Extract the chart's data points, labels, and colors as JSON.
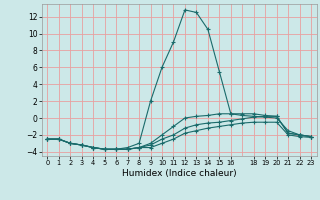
{
  "title": "",
  "xlabel": "Humidex (Indice chaleur)",
  "bg_color": "#cce8e8",
  "grid_color_v": "#e8a0a0",
  "grid_color_h": "#e8a0a0",
  "line_color": "#1a6b6b",
  "xlim": [
    -0.5,
    23.5
  ],
  "ylim": [
    -4.5,
    13.5
  ],
  "yticks": [
    -4,
    -2,
    0,
    2,
    4,
    6,
    8,
    10,
    12
  ],
  "xticks": [
    0,
    1,
    2,
    3,
    4,
    5,
    6,
    7,
    8,
    9,
    10,
    11,
    12,
    13,
    14,
    15,
    16,
    18,
    19,
    20,
    21,
    22,
    23
  ],
  "curves": [
    {
      "x": [
        0,
        1,
        2,
        3,
        4,
        5,
        6,
        7,
        8,
        9,
        10,
        11,
        12,
        13,
        14,
        15,
        16,
        17,
        18,
        19,
        20,
        21,
        22,
        23
      ],
      "y": [
        -2.5,
        -2.5,
        -3.0,
        -3.2,
        -3.5,
        -3.7,
        -3.7,
        -3.7,
        -3.5,
        -3.5,
        -3.0,
        -2.5,
        -1.8,
        -1.5,
        -1.2,
        -1.0,
        -0.8,
        -0.6,
        -0.5,
        -0.5,
        -0.5,
        -2.0,
        -2.2,
        -2.3
      ]
    },
    {
      "x": [
        0,
        1,
        2,
        3,
        4,
        5,
        6,
        7,
        8,
        9,
        10,
        11,
        12,
        13,
        14,
        15,
        16,
        17,
        18,
        19,
        20,
        21,
        22,
        23
      ],
      "y": [
        -2.5,
        -2.5,
        -3.0,
        -3.2,
        -3.5,
        -3.7,
        -3.7,
        -3.7,
        -3.5,
        -3.2,
        -2.5,
        -2.0,
        -1.2,
        -0.8,
        -0.6,
        -0.5,
        -0.3,
        -0.1,
        0.1,
        0.2,
        0.2,
        -1.8,
        -2.0,
        -2.2
      ]
    },
    {
      "x": [
        0,
        1,
        2,
        3,
        4,
        5,
        6,
        7,
        8,
        9,
        10,
        11,
        12,
        13,
        14,
        15,
        16,
        17,
        18,
        19,
        20,
        21,
        22,
        23
      ],
      "y": [
        -2.5,
        -2.5,
        -3.0,
        -3.2,
        -3.5,
        -3.7,
        -3.7,
        -3.5,
        -3.0,
        2.0,
        6.0,
        9.0,
        12.8,
        12.5,
        10.5,
        5.5,
        0.5,
        0.3,
        0.2,
        0.1,
        0.0,
        -1.5,
        -2.0,
        -2.2
      ]
    },
    {
      "x": [
        0,
        1,
        2,
        3,
        4,
        5,
        6,
        7,
        8,
        9,
        10,
        11,
        12,
        13,
        14,
        15,
        16,
        17,
        18,
        19,
        20,
        21,
        22,
        23
      ],
      "y": [
        -2.5,
        -2.5,
        -3.0,
        -3.2,
        -3.5,
        -3.7,
        -3.7,
        -3.7,
        -3.5,
        -3.0,
        -2.0,
        -1.0,
        0.0,
        0.2,
        0.3,
        0.5,
        0.5,
        0.5,
        0.5,
        0.3,
        0.2,
        -1.8,
        -2.0,
        -2.2
      ]
    }
  ]
}
